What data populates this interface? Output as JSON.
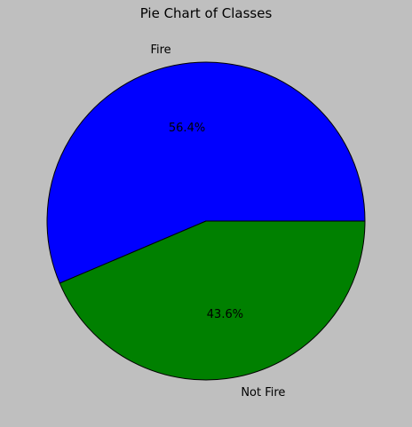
{
  "chart_data": {
    "type": "pie",
    "title": "Pie Chart of Classes",
    "categories": [
      "Fire",
      "Not Fire"
    ],
    "values": [
      56.4,
      43.6
    ],
    "percent_labels": [
      "56.4%",
      "43.6%"
    ],
    "colors": [
      "#0000ff",
      "#008000"
    ],
    "edge_color": "#000000",
    "background": "#bfbfbf",
    "start_angle_deg": 0,
    "direction": "counterclockwise"
  }
}
